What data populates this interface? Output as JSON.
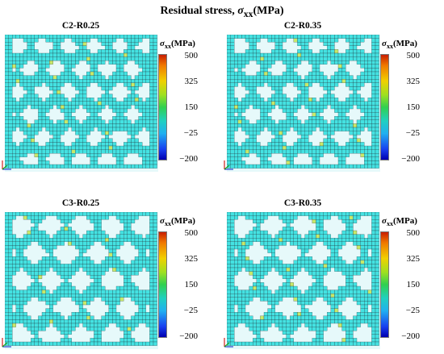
{
  "figure_title_prefix": "Residual stress, ",
  "figure_title_symbol": "σ",
  "figure_title_subscript": "xx",
  "figure_title_unit": "(MPa)",
  "colorbar": {
    "symbol": "σ",
    "subscript": "xx",
    "unit": "(MPa)",
    "ticks": [
      "500",
      "325",
      "150",
      "−25",
      "−200"
    ]
  },
  "colors": {
    "mesh_fill": "#44e2e2",
    "mesh_pale": "#b8eff0",
    "mesh_line": "#1c2f36",
    "hot_spot": "#c8e86a"
  },
  "panels": [
    {
      "title": "C2-R0.25",
      "pattern": "C2"
    },
    {
      "title": "C2-R0.35",
      "pattern": "C2"
    },
    {
      "title": "C3-R0.25",
      "pattern": "C3"
    },
    {
      "title": "C3-R0.35",
      "pattern": "C3"
    }
  ]
}
